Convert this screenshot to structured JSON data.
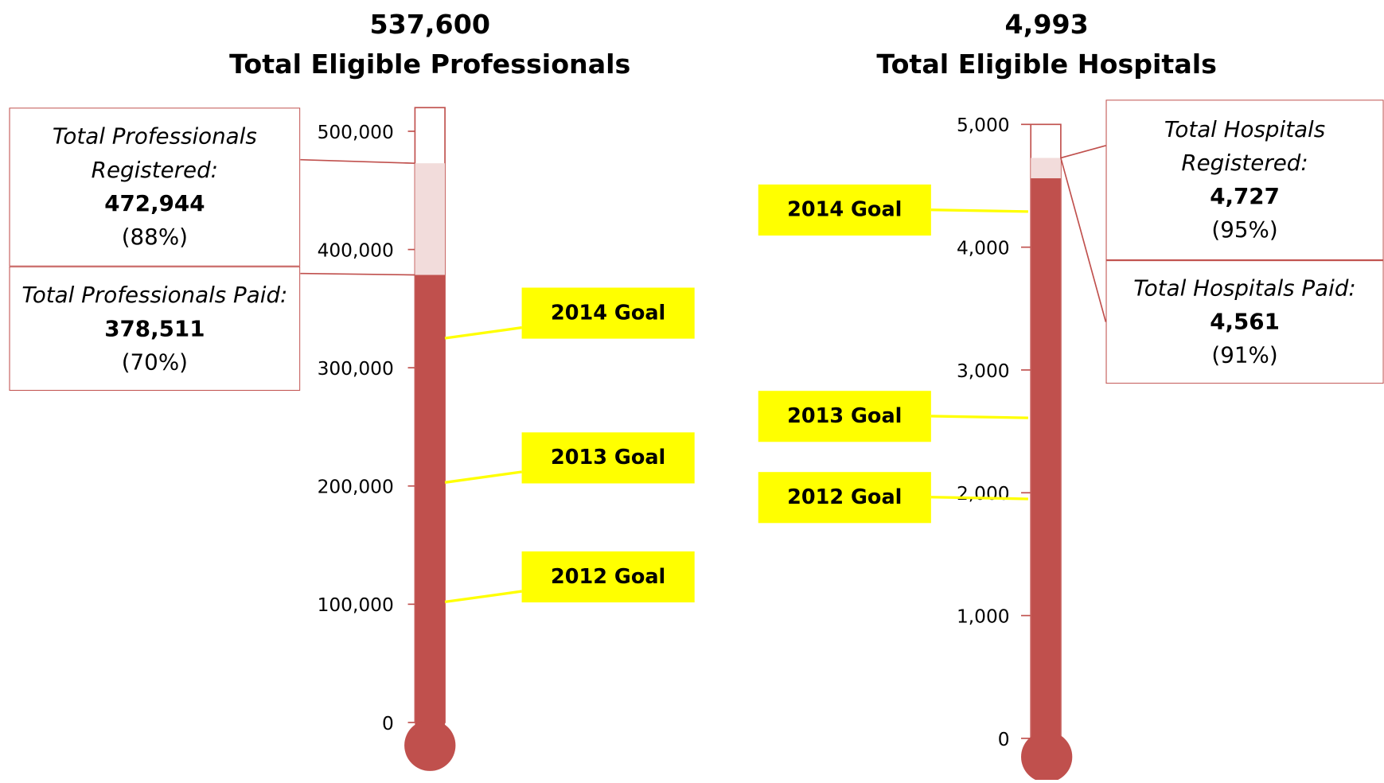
{
  "chart_data": [
    {
      "type": "thermometer",
      "total_label": "537,600",
      "title": "Total Eligible Professionals",
      "ylim": [
        0,
        520000
      ],
      "yticks": [
        0,
        {
          "value": 100000,
          "label": "100,000"
        },
        {
          "value": 200000,
          "label": "200,000"
        },
        {
          "value": 300000,
          "label": "300,000"
        },
        {
          "value": 400000,
          "label": "400,000"
        },
        {
          "value": 500000,
          "label": "500,000"
        }
      ],
      "series": [
        {
          "name": "Total Professionals Registered:",
          "color": "#f2dcdb",
          "value": 472944,
          "value_label": "472,944",
          "percent": 88,
          "percent_label": "(88%)"
        },
        {
          "name": "Total Professionals Paid:",
          "color": "#c0504d",
          "value": 378511,
          "value_label": "378,511",
          "percent": 70,
          "percent_label": "(70%)"
        }
      ],
      "goals": [
        {
          "name": "2014 Goal",
          "value": 325000
        },
        {
          "name": "2013 Goal",
          "value": 203000
        },
        {
          "name": "2012 Goal",
          "value": 102000
        }
      ]
    },
    {
      "type": "thermometer",
      "total_label": "4,993",
      "title": "Total Eligible Hospitals",
      "ylim": [
        0,
        5000
      ],
      "yticks": [
        0,
        {
          "value": 1000,
          "label": "1,000"
        },
        {
          "value": 2000,
          "label": "2,000"
        },
        {
          "value": 3000,
          "label": "3,000"
        },
        {
          "value": 4000,
          "label": "4,000"
        },
        {
          "value": 5000,
          "label": "5,000"
        }
      ],
      "series": [
        {
          "name": "Total Hospitals Registered:",
          "color": "#f2dcdb",
          "value": 4727,
          "value_label": "4,727",
          "percent": 95,
          "percent_label": "(95%)"
        },
        {
          "name": "Total Hospitals Paid:",
          "color": "#c0504d",
          "value": 4561,
          "value_label": "4,561",
          "percent": 91,
          "percent_label": "(91%)"
        }
      ],
      "goals": [
        {
          "name": "2014 Goal",
          "value": 4290
        },
        {
          "name": "2013 Goal",
          "value": 2610
        },
        {
          "name": "2012 Goal",
          "value": 1950
        }
      ]
    }
  ]
}
